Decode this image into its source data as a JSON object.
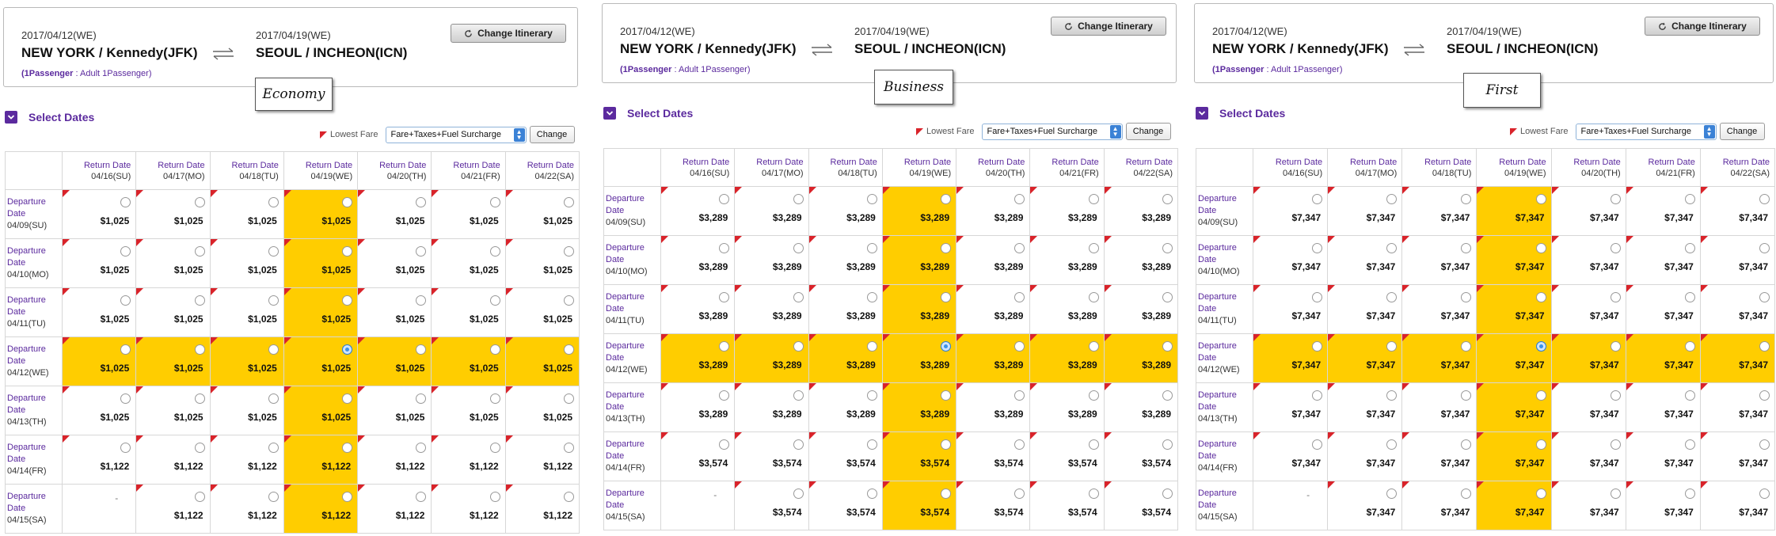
{
  "panels": [
    {
      "departure_date": "2017/04/12(WE)",
      "return_date": "2017/04/19(WE)",
      "origin": "NEW YORK / Kennedy(JFK)",
      "destination": "SEOUL / INCHEON(ICN)",
      "passenger_count": "(1Passenger",
      "passenger_detail": " : Adult 1Passenger)",
      "change_itinerary_label": "Change Itinerary",
      "cabin": "Economy",
      "select_dates_label": "Select Dates",
      "lowest_fare_label": "Lowest Fare",
      "fare_option": "Fare+Taxes+Fuel Surcharge",
      "change_label": "Change",
      "return_label": "Return Date",
      "departure_label_1": "Departure",
      "departure_label_2": "Date",
      "return_dates": [
        "04/16(SU)",
        "04/17(MO)",
        "04/18(TU)",
        "04/19(WE)",
        "04/20(TH)",
        "04/21(FR)",
        "04/22(SA)"
      ],
      "departure_dates": [
        "04/09(SU)",
        "04/10(MO)",
        "04/11(TU)",
        "04/12(WE)",
        "04/13(TH)",
        "04/14(FR)",
        "04/15(SA)"
      ],
      "fares": [
        [
          "$1,025",
          "$1,025",
          "$1,025",
          "$1,025",
          "$1,025",
          "$1,025",
          "$1,025"
        ],
        [
          "$1,025",
          "$1,025",
          "$1,025",
          "$1,025",
          "$1,025",
          "$1,025",
          "$1,025"
        ],
        [
          "$1,025",
          "$1,025",
          "$1,025",
          "$1,025",
          "$1,025",
          "$1,025",
          "$1,025"
        ],
        [
          "$1,025",
          "$1,025",
          "$1,025",
          "$1,025",
          "$1,025",
          "$1,025",
          "$1,025"
        ],
        [
          "$1,025",
          "$1,025",
          "$1,025",
          "$1,025",
          "$1,025",
          "$1,025",
          "$1,025"
        ],
        [
          "$1,122",
          "$1,122",
          "$1,122",
          "$1,122",
          "$1,122",
          "$1,122",
          "$1,122"
        ],
        [
          "-",
          "$1,122",
          "$1,122",
          "$1,122",
          "$1,122",
          "$1,122",
          "$1,122"
        ]
      ]
    },
    {
      "departure_date": "2017/04/12(WE)",
      "return_date": "2017/04/19(WE)",
      "origin": "NEW YORK / Kennedy(JFK)",
      "destination": "SEOUL / INCHEON(ICN)",
      "passenger_count": "(1Passenger",
      "passenger_detail": " : Adult 1Passenger)",
      "change_itinerary_label": "Change Itinerary",
      "cabin": "Business",
      "select_dates_label": "Select Dates",
      "lowest_fare_label": "Lowest Fare",
      "fare_option": "Fare+Taxes+Fuel Surcharge",
      "change_label": "Change",
      "return_label": "Return Date",
      "departure_label_1": "Departure",
      "departure_label_2": "Date",
      "return_dates": [
        "04/16(SU)",
        "04/17(MO)",
        "04/18(TU)",
        "04/19(WE)",
        "04/20(TH)",
        "04/21(FR)",
        "04/22(SA)"
      ],
      "departure_dates": [
        "04/09(SU)",
        "04/10(MO)",
        "04/11(TU)",
        "04/12(WE)",
        "04/13(TH)",
        "04/14(FR)",
        "04/15(SA)"
      ],
      "fares": [
        [
          "$3,289",
          "$3,289",
          "$3,289",
          "$3,289",
          "$3,289",
          "$3,289",
          "$3,289"
        ],
        [
          "$3,289",
          "$3,289",
          "$3,289",
          "$3,289",
          "$3,289",
          "$3,289",
          "$3,289"
        ],
        [
          "$3,289",
          "$3,289",
          "$3,289",
          "$3,289",
          "$3,289",
          "$3,289",
          "$3,289"
        ],
        [
          "$3,289",
          "$3,289",
          "$3,289",
          "$3,289",
          "$3,289",
          "$3,289",
          "$3,289"
        ],
        [
          "$3,289",
          "$3,289",
          "$3,289",
          "$3,289",
          "$3,289",
          "$3,289",
          "$3,289"
        ],
        [
          "$3,574",
          "$3,574",
          "$3,574",
          "$3,574",
          "$3,574",
          "$3,574",
          "$3,574"
        ],
        [
          "-",
          "$3,574",
          "$3,574",
          "$3,574",
          "$3,574",
          "$3,574",
          "$3,574"
        ]
      ]
    },
    {
      "departure_date": "2017/04/12(WE)",
      "return_date": "2017/04/19(WE)",
      "origin": "NEW YORK / Kennedy(JFK)",
      "destination": "SEOUL / INCHEON(ICN)",
      "passenger_count": "(1Passenger",
      "passenger_detail": " : Adult 1Passenger)",
      "change_itinerary_label": "Change Itinerary",
      "cabin": "First",
      "select_dates_label": "Select Dates",
      "lowest_fare_label": "Lowest Fare",
      "fare_option": "Fare+Taxes+Fuel Surcharge",
      "change_label": "Change",
      "return_label": "Return Date",
      "departure_label_1": "Departure",
      "departure_label_2": "Date",
      "return_dates": [
        "04/16(SU)",
        "04/17(MO)",
        "04/18(TU)",
        "04/19(WE)",
        "04/20(TH)",
        "04/21(FR)",
        "04/22(SA)"
      ],
      "departure_dates": [
        "04/09(SU)",
        "04/10(MO)",
        "04/11(TU)",
        "04/12(WE)",
        "04/13(TH)",
        "04/14(FR)",
        "04/15(SA)"
      ],
      "fares": [
        [
          "$7,347",
          "$7,347",
          "$7,347",
          "$7,347",
          "$7,347",
          "$7,347",
          "$7,347"
        ],
        [
          "$7,347",
          "$7,347",
          "$7,347",
          "$7,347",
          "$7,347",
          "$7,347",
          "$7,347"
        ],
        [
          "$7,347",
          "$7,347",
          "$7,347",
          "$7,347",
          "$7,347",
          "$7,347",
          "$7,347"
        ],
        [
          "$7,347",
          "$7,347",
          "$7,347",
          "$7,347",
          "$7,347",
          "$7,347",
          "$7,347"
        ],
        [
          "$7,347",
          "$7,347",
          "$7,347",
          "$7,347",
          "$7,347",
          "$7,347",
          "$7,347"
        ],
        [
          "$7,347",
          "$7,347",
          "$7,347",
          "$7,347",
          "$7,347",
          "$7,347",
          "$7,347"
        ],
        [
          "-",
          "$7,347",
          "$7,347",
          "$7,347",
          "$7,347",
          "$7,347",
          "$7,347"
        ]
      ]
    }
  ],
  "selected_row_index": 3,
  "selected_col_index": 3,
  "colors": {
    "highlight": "#ffcd00",
    "accent": "#5b2a9e",
    "lowest_fare_flag": "#d9232a",
    "selected_radio": "#3b92e8"
  },
  "icons": {
    "refresh": "refresh-icon",
    "swap": "swap-arrows-icon",
    "select_dates": "collapse-chevron-icon",
    "flag": "lowest-fare-flag-icon"
  }
}
